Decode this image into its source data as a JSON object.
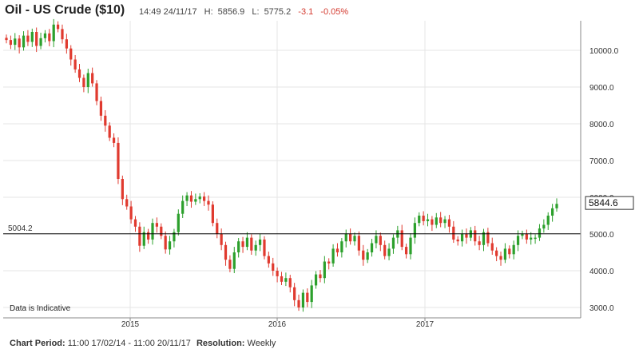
{
  "header": {
    "title": "Oil - US Crude ($10)",
    "time": "14:49 24/11/17",
    "high_label": "H:",
    "high": "5856.9",
    "low_label": "L:",
    "low": "5775.2",
    "change": "-3.1",
    "change_pct": "-0.05%"
  },
  "footer": {
    "period_label": "Chart Period:",
    "period": "11:00 17/02/14 - 11:00 20/11/17",
    "resolution_label": "Resolution:",
    "resolution": "Weekly"
  },
  "colors": {
    "up": "#2ca02c",
    "down": "#e03a2f",
    "grid": "#e6e6e6",
    "line": "#000000"
  },
  "chart_data": {
    "type": "candlestick",
    "x_tick_labels": [
      "2015",
      "2016",
      "2017"
    ],
    "y_tick_labels": [
      "10000.0",
      "9000.0",
      "8000.0",
      "7000.0",
      "6000.0",
      "5000.0",
      "4000.0",
      "3000.0"
    ],
    "ylim": [
      2800,
      10800
    ],
    "grid": true,
    "reference_line": {
      "value": 5004.2,
      "label": "5004.2"
    },
    "last_price": {
      "value": 5844.6,
      "label": "5844.6"
    },
    "note": "Data is Indicative",
    "close_series": [
      10280,
      10150,
      10320,
      10080,
      10400,
      10230,
      10500,
      10120,
      10330,
      10460,
      10250,
      10700,
      10580,
      10300,
      10050,
      9750,
      9480,
      9250,
      9000,
      9380,
      9100,
      8620,
      8220,
      7950,
      7620,
      7480,
      6500,
      5950,
      5750,
      5400,
      5200,
      4680,
      5050,
      4850,
      5300,
      5200,
      4950,
      4580,
      4800,
      5050,
      5550,
      5900,
      6050,
      5880,
      5950,
      6020,
      5900,
      5800,
      5300,
      5000,
      4700,
      4300,
      4050,
      4500,
      4800,
      4650,
      4900,
      4550,
      4700,
      4850,
      4400,
      4200,
      4000,
      3850,
      3700,
      3800,
      3550,
      3200,
      3000,
      3400,
      3150,
      3600,
      3900,
      3800,
      4250,
      4200,
      4600,
      4500,
      4800,
      5000,
      4800,
      4950,
      4550,
      4300,
      4500,
      4750,
      4950,
      4700,
      4400,
      4600,
      4900,
      5100,
      4650,
      4450,
      4900,
      5300,
      5500,
      5350,
      5400,
      5250,
      5450,
      5300,
      5400,
      5200,
      4850,
      4800,
      5000,
      4900,
      5100,
      4800,
      4700,
      5050,
      4750,
      4550,
      4400,
      4300,
      4600,
      4450,
      4700,
      4950,
      5000,
      4850,
      4900,
      4900,
      5150,
      5250,
      5500,
      5700,
      5820
    ]
  }
}
